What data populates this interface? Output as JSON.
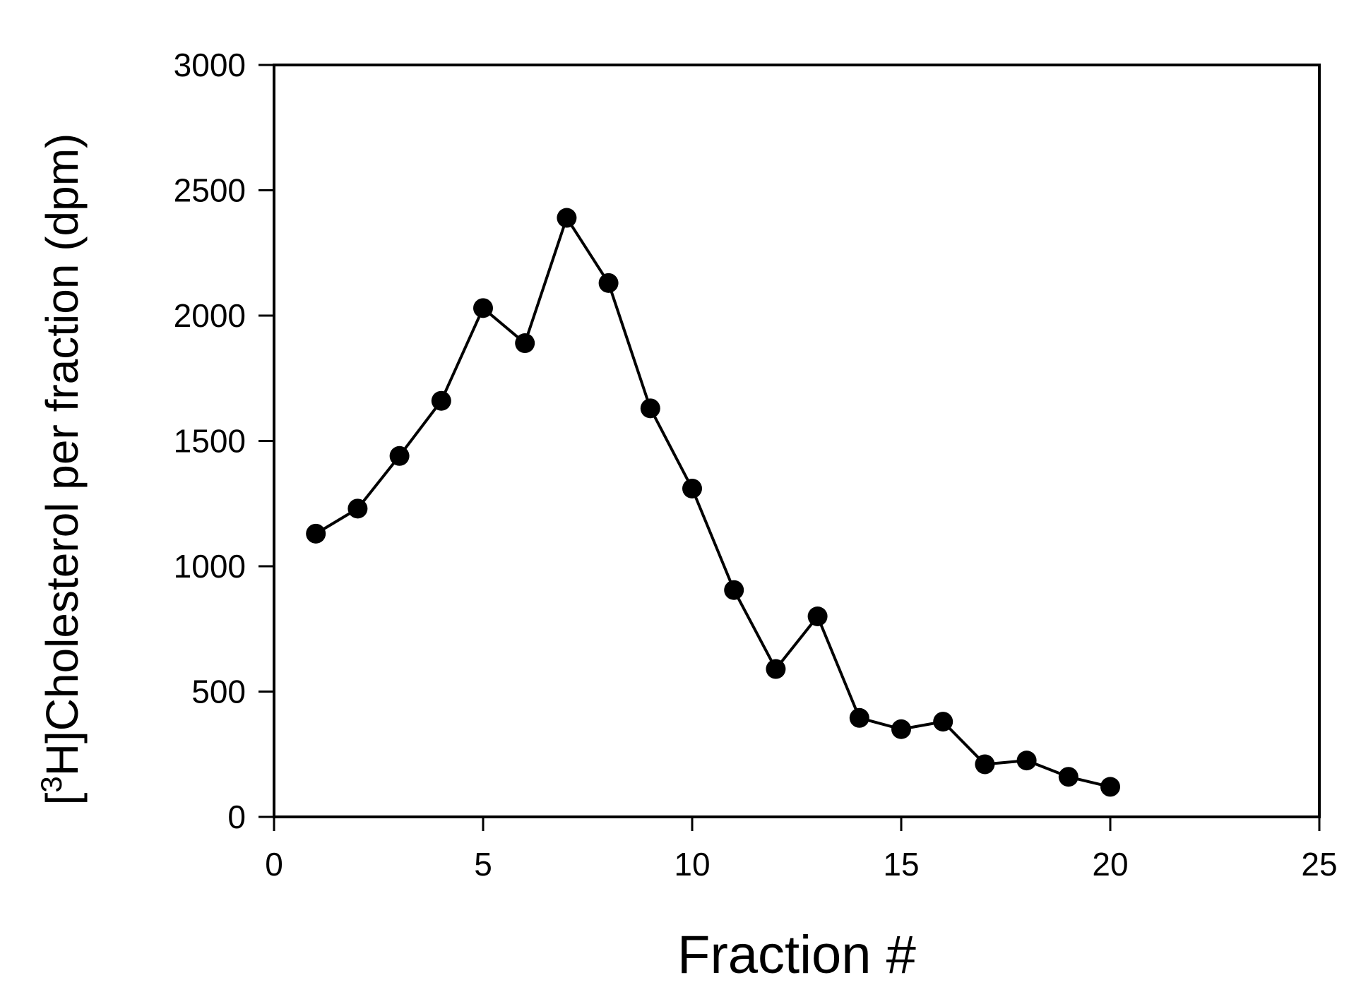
{
  "chart_data": {
    "type": "line",
    "title": "",
    "xlabel": "Fraction #",
    "ylabel": {
      "prefix": "[",
      "superscript": "3",
      "rest": "H]Cholesterol per fraction (dpm)"
    },
    "xlim": [
      0,
      25
    ],
    "ylim": [
      0,
      3000
    ],
    "x_ticks": [
      0,
      5,
      10,
      15,
      20,
      25
    ],
    "y_ticks": [
      0,
      500,
      1000,
      1500,
      2000,
      2500,
      3000
    ],
    "grid": false,
    "legend": "none",
    "series": [
      {
        "marker": "filled-circle",
        "color": "#000000",
        "x": [
          1,
          2,
          3,
          4,
          5,
          6,
          7,
          8,
          9,
          10,
          11,
          12,
          13,
          14,
          15,
          16,
          17,
          18,
          19,
          20
        ],
        "y": [
          1130,
          1230,
          1440,
          1660,
          2030,
          1890,
          2390,
          2130,
          1630,
          1310,
          905,
          590,
          800,
          395,
          350,
          380,
          210,
          225,
          160,
          120
        ]
      }
    ]
  }
}
